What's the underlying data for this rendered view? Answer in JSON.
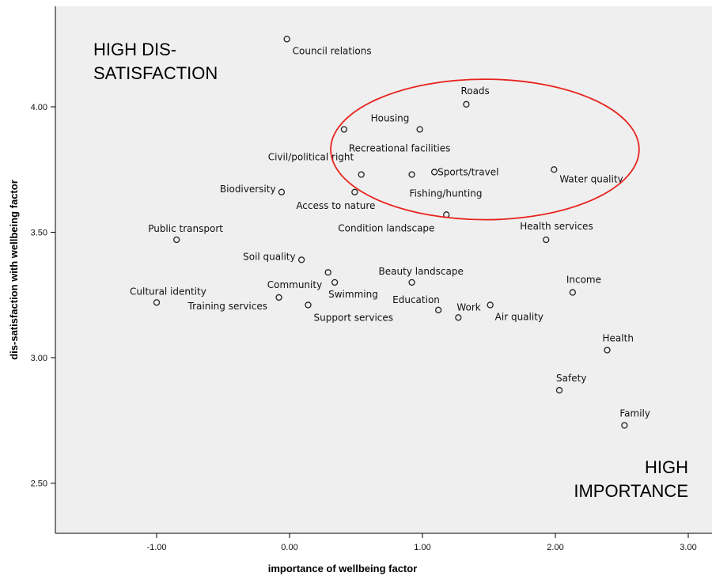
{
  "chart_data": {
    "type": "scatter",
    "xlabel": "importance of wellbeing factor",
    "ylabel": "dis-satisfaction with wellbeing factor",
    "xlim": [
      -1.7,
      3.2
    ],
    "ylim": [
      2.3,
      4.4
    ],
    "xticks": [
      -1.0,
      0.0,
      1.0,
      2.0,
      3.0
    ],
    "xtick_labels": [
      "-1.00",
      "0.00",
      "1.00",
      "2.00",
      "3.00"
    ],
    "yticks": [
      2.5,
      3.0,
      3.5,
      4.0
    ],
    "ytick_labels": [
      "2.50",
      "3.00",
      "3.50",
      "4.00"
    ],
    "grid": false,
    "background": "#efefef",
    "marker_color": "#222222",
    "points": [
      {
        "label": "Council relations",
        "x": -0.02,
        "y": 4.27
      },
      {
        "label": "Roads",
        "x": 1.33,
        "y": 4.01
      },
      {
        "label": "Housing",
        "x": 0.98,
        "y": 3.91
      },
      {
        "label": "Recreational facilities",
        "x": 0.41,
        "y": 3.91
      },
      {
        "label": "Civil/political right",
        "x": 0.54,
        "y": 3.73
      },
      {
        "label": "Fishing/hunting",
        "x": 0.92,
        "y": 3.73
      },
      {
        "label": "Sports/travel",
        "x": 1.09,
        "y": 3.74
      },
      {
        "label": "Water quality",
        "x": 1.99,
        "y": 3.75
      },
      {
        "label": "Biodiversity",
        "x": -0.06,
        "y": 3.66
      },
      {
        "label": "Access to nature",
        "x": 0.49,
        "y": 3.66
      },
      {
        "label": "Condition landscape",
        "x": 1.18,
        "y": 3.57
      },
      {
        "label": "Public transport",
        "x": -0.85,
        "y": 3.47
      },
      {
        "label": "Health services",
        "x": 1.93,
        "y": 3.47
      },
      {
        "label": "Soil quality",
        "x": 0.09,
        "y": 3.39
      },
      {
        "label": "Community",
        "x": 0.29,
        "y": 3.34
      },
      {
        "label": "Swimming",
        "x": 0.34,
        "y": 3.3
      },
      {
        "label": "Beauty landscape",
        "x": 0.92,
        "y": 3.3
      },
      {
        "label": "Income",
        "x": 2.13,
        "y": 3.26
      },
      {
        "label": "Cultural identity",
        "x": -1.0,
        "y": 3.22
      },
      {
        "label": "Training services",
        "x": -0.08,
        "y": 3.24
      },
      {
        "label": "Support services",
        "x": 0.14,
        "y": 3.21
      },
      {
        "label": "Education",
        "x": 1.12,
        "y": 3.19
      },
      {
        "label": "Work",
        "x": 1.27,
        "y": 3.16
      },
      {
        "label": "Air quality",
        "x": 1.51,
        "y": 3.21
      },
      {
        "label": "Health",
        "x": 2.39,
        "y": 3.03
      },
      {
        "label": "Safety",
        "x": 2.03,
        "y": 2.87
      },
      {
        "label": "Family",
        "x": 2.52,
        "y": 2.73
      }
    ],
    "ellipse": {
      "cx": 1.47,
      "cy": 3.83,
      "rx": 1.16,
      "ry": 0.28,
      "color": "#e8231d"
    },
    "annotations": [
      {
        "lines": [
          "HIGH DIS-",
          "SATISFACTION"
        ],
        "position": "top-left"
      },
      {
        "lines": [
          "HIGH",
          "IMPORTANCE"
        ],
        "position": "bottom-right"
      }
    ]
  }
}
